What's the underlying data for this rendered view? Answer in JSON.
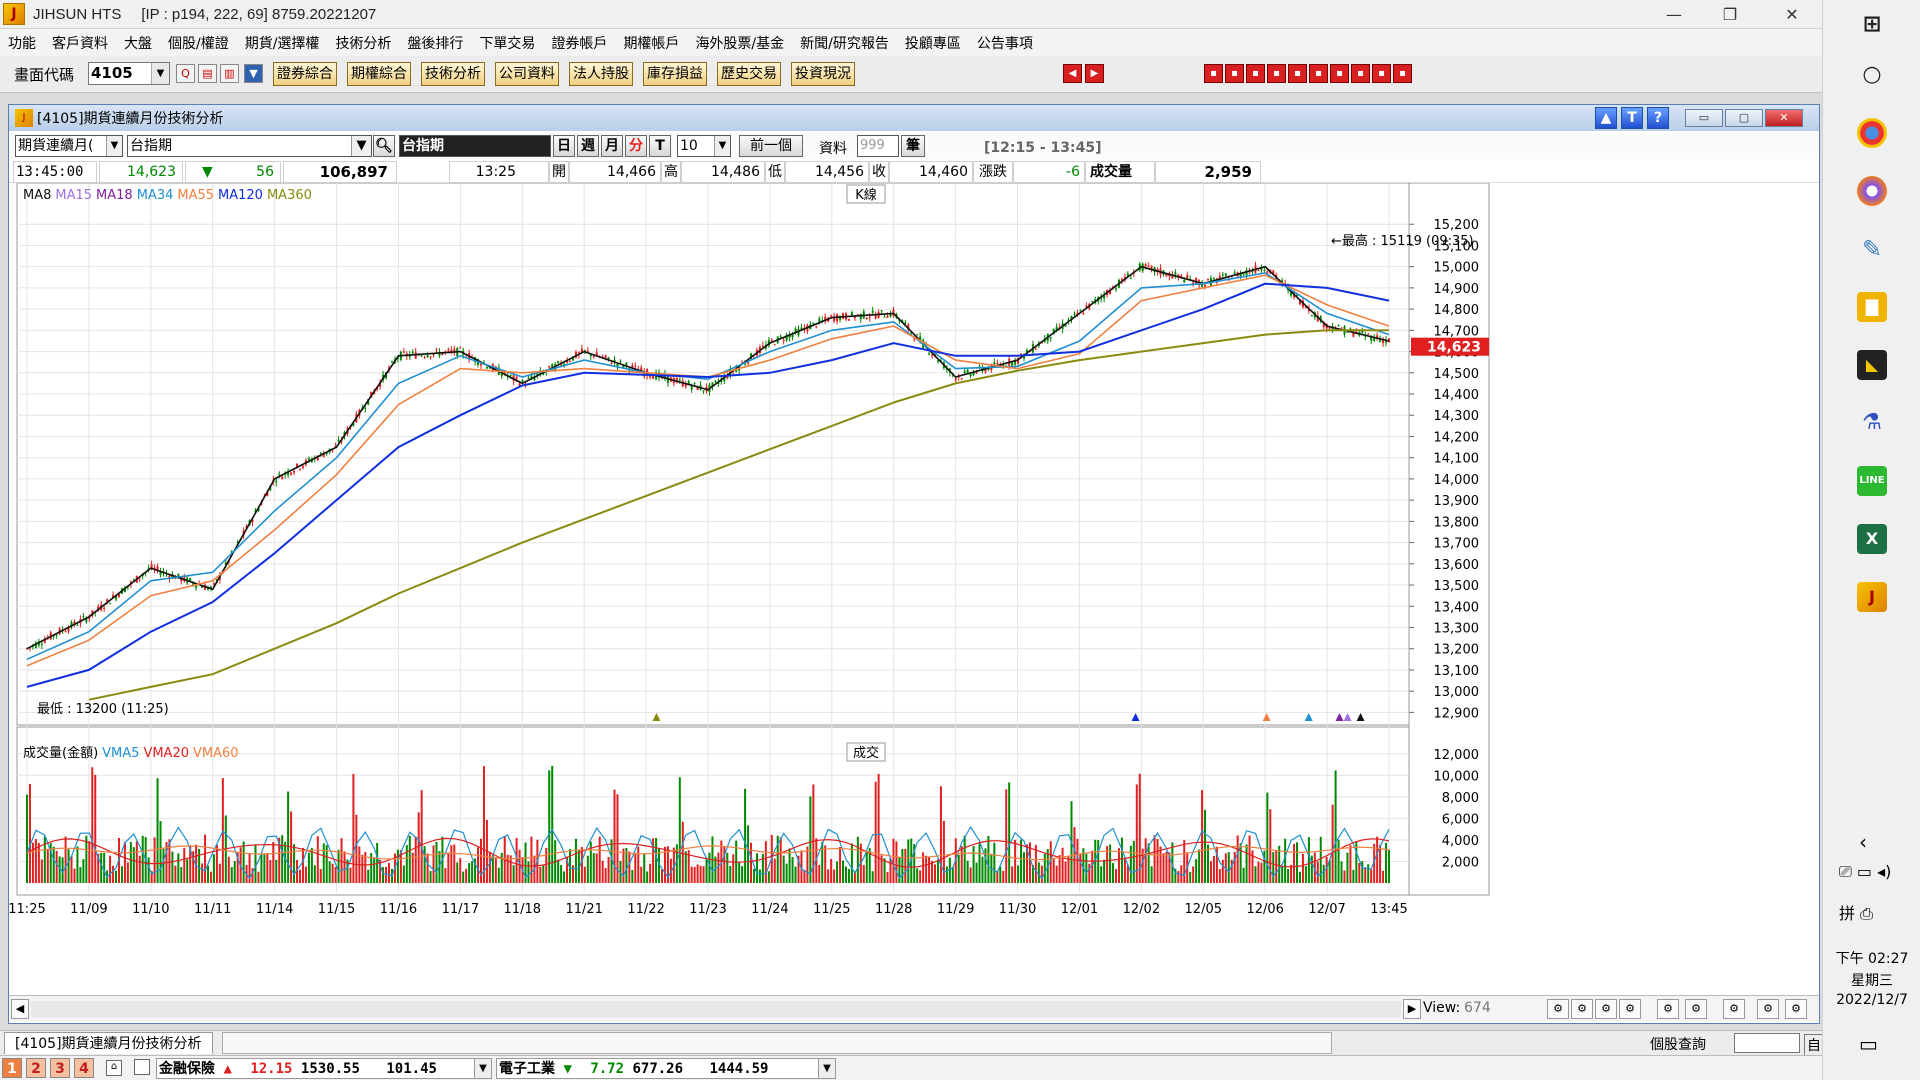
{
  "app": {
    "title": "JIHSUN HTS",
    "connection": "[IP : p194, 222, 69] 8759.20221207"
  },
  "menu": [
    "功能",
    "客戶資料",
    "大盤",
    "個股/權證",
    "期貨/選擇權",
    "技術分析",
    "盤後排行",
    "下單交易",
    "證券帳戶",
    "期權帳戶",
    "海外股票/基金",
    "新聞/研究報告",
    "投顧專區",
    "公告事項"
  ],
  "toolbar": {
    "code_label": "畫面代碼",
    "code_value": "4105",
    "buttons": [
      "證券綜合",
      "期權綜合",
      "技術分析",
      "公司資料",
      "法人持股",
      "庫存損益",
      "歷史交易",
      "投資現況"
    ]
  },
  "window": {
    "title": "[4105]期貨連續月份技術分析"
  },
  "controls": {
    "type_select": "期貨連續月(",
    "symbol_select": "台指期",
    "symbol_name": "台指期",
    "periods": [
      "日",
      "週",
      "月",
      "分",
      "T"
    ],
    "period_active": "分",
    "interval": "10",
    "prev_button": "前一個",
    "data_label": "資料",
    "data_count": "999",
    "bars_label": "筆",
    "session": "[12:15 - 13:45]"
  },
  "info": {
    "time": "13:45:00",
    "price": "14,623",
    "change": "56",
    "volume_total": "106,897",
    "bar_time": "13:25",
    "open_label": "開",
    "open": "14,466",
    "high_label": "高",
    "high": "14,486",
    "low_label": "低",
    "low": "14,456",
    "close_label": "收",
    "close": "14,460",
    "chg_label": "漲跌",
    "chg": "-6",
    "vol_label": "成交量",
    "vol": "2,959"
  },
  "colors": {
    "up": "#e02020",
    "down": "#008800",
    "ma8": "#111111",
    "ma15": "#a070e0",
    "ma18": "#8020a0",
    "ma34": "#2090d0",
    "ma55": "#f08040",
    "ma120": "#1030e0",
    "ma360": "#8a8a10"
  },
  "price_panel": {
    "k_label": "K線",
    "legend": [
      "MA8",
      "MA15",
      "MA18",
      "MA34",
      "MA55",
      "MA120",
      "MA360"
    ],
    "high_note": "←最高 : 15119 (09:35)",
    "low_note": "最低 : 13200 (11:25)",
    "last_price_tag": "14,623"
  },
  "volume_panel": {
    "title_label": "成交",
    "legend": [
      "成交量(金額)",
      "VMA5",
      "VMA20",
      "VMA60"
    ]
  },
  "chart_data": [
    {
      "type": "line",
      "y_ticks": [
        "15,200",
        "15,100",
        "15,000",
        "14,900",
        "14,800",
        "14,700",
        "14,600",
        "14,500",
        "14,400",
        "14,300",
        "14,200",
        "14,100",
        "14,000",
        "13,900",
        "13,800",
        "13,700",
        "13,600",
        "13,500",
        "13,400",
        "13,300",
        "13,200",
        "13,100",
        "13,000",
        "12,900"
      ],
      "ylim": [
        12850,
        15300
      ],
      "categories": [
        "11:25",
        "11/09",
        "11/10",
        "11/11",
        "11/14",
        "11/15",
        "11/16",
        "11/17",
        "11/18",
        "11/21",
        "11/22",
        "11/23",
        "11/24",
        "11/25",
        "11/28",
        "11/29",
        "11/30",
        "12/01",
        "12/02",
        "12/05",
        "12/06",
        "12/07",
        "13:45"
      ],
      "series": [
        {
          "name": "MA8",
          "values": [
            13200,
            13350,
            13580,
            13480,
            14000,
            14150,
            14580,
            14600,
            14450,
            14600,
            14500,
            14420,
            14640,
            14760,
            14780,
            14480,
            14560,
            14780,
            15000,
            14920,
            15000,
            14720,
            14650
          ]
        },
        {
          "name": "MA34",
          "values": [
            13150,
            13280,
            13520,
            13560,
            13850,
            14100,
            14450,
            14580,
            14480,
            14560,
            14500,
            14470,
            14600,
            14700,
            14740,
            14520,
            14530,
            14650,
            14900,
            14920,
            14970,
            14780,
            14680
          ]
        },
        {
          "name": "MA55",
          "values": [
            13120,
            13240,
            13450,
            13520,
            13760,
            14020,
            14350,
            14520,
            14500,
            14520,
            14500,
            14480,
            14560,
            14660,
            14720,
            14560,
            14520,
            14590,
            14840,
            14900,
            14960,
            14820,
            14720
          ]
        },
        {
          "name": "MA120",
          "values": [
            13020,
            13100,
            13280,
            13420,
            13650,
            13900,
            14150,
            14300,
            14440,
            14500,
            14490,
            14480,
            14500,
            14560,
            14640,
            14580,
            14580,
            14600,
            14700,
            14800,
            14920,
            14900,
            14840
          ]
        },
        {
          "name": "MA360",
          "values": [
            null,
            12960,
            13020,
            13080,
            13200,
            13320,
            13460,
            13580,
            13700,
            13810,
            13920,
            14030,
            14140,
            14250,
            14360,
            14450,
            14510,
            14560,
            14600,
            14640,
            14680,
            14700,
            14700
          ]
        }
      ]
    },
    {
      "type": "bar",
      "y_ticks": [
        "12,000",
        "10,000",
        "8,000",
        "6,000",
        "4,000",
        "2,000"
      ],
      "ylim": [
        0,
        13000
      ]
    }
  ],
  "scroll": {
    "view_label": "View:",
    "view_value": "674"
  },
  "tabs": {
    "active": "[4105]期貨連續月份技術分析",
    "right": "個股查詢",
    "far_right": "自"
  },
  "status": {
    "pages": [
      "1",
      "2",
      "3",
      "4"
    ],
    "item1_name": "金融保險",
    "item1_arrow": "▲",
    "item1_chg": "12.15",
    "item1_val": "1530.55",
    "item1_amt": "101.45",
    "item2_name": "電子工業",
    "item2_arrow": "▼",
    "item2_chg": "7.72",
    "item2_val": "677.26",
    "item2_amt": "1444.59"
  },
  "taskbar": {
    "time": "下午 02:27",
    "weekday": "星期三",
    "date": "2022/12/7"
  }
}
